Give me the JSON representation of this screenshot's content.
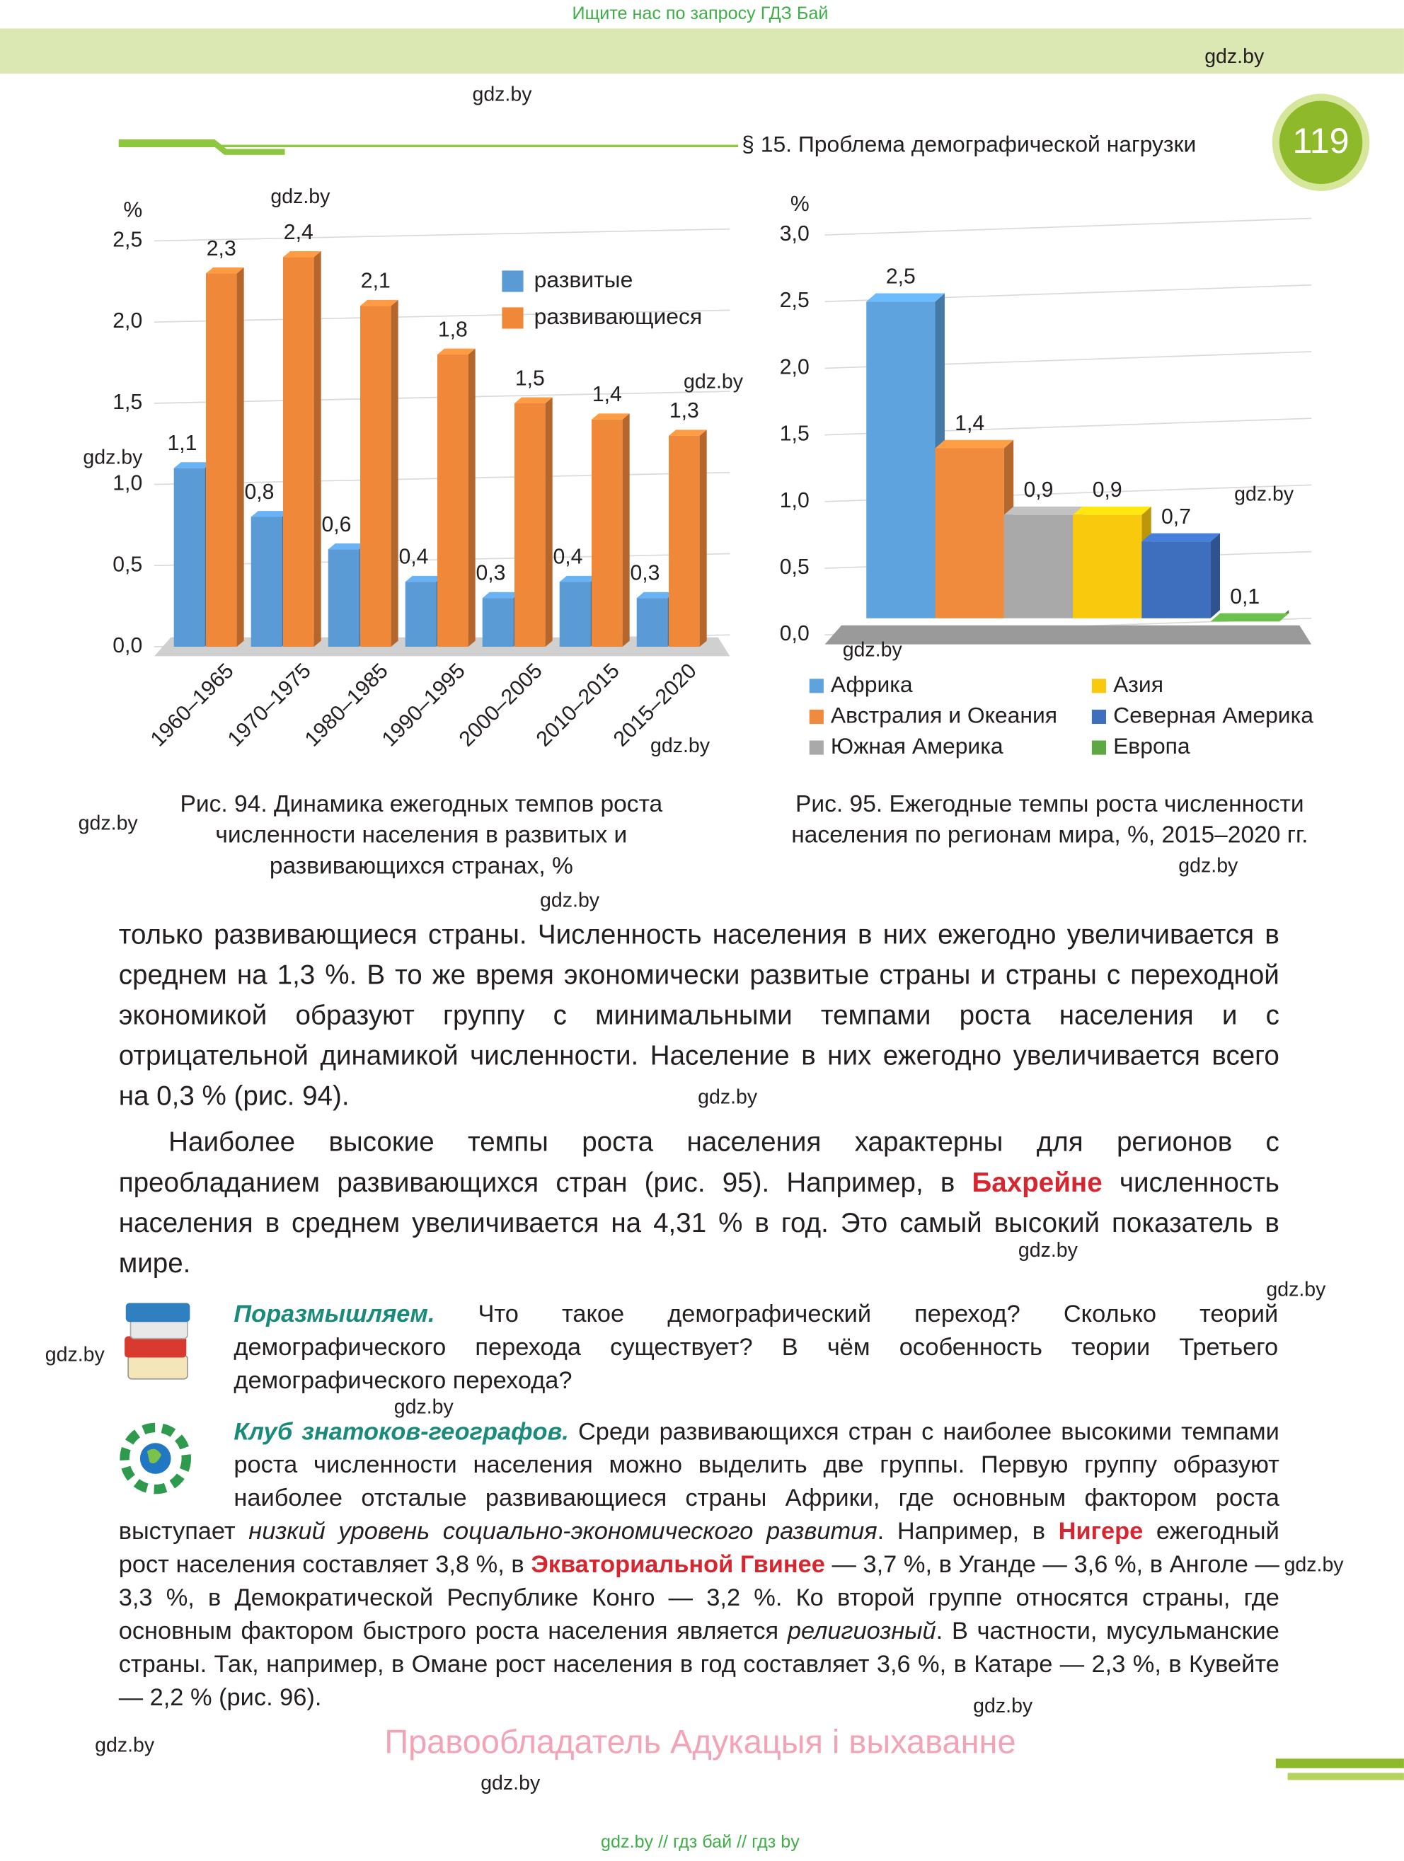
{
  "banner": "Ищите нас по запросу ГДЗ Бай",
  "header": {
    "section": "§ 15. Проблема демографической нагрузки",
    "page_number": "119"
  },
  "chart_data": [
    {
      "type": "bar",
      "caption": "Рис. 94. Динамика ежегодных темпов роста численности населения в развитых и развивающихся странах, %",
      "y_label": "%",
      "categories": [
        "1960–1965",
        "1970–1975",
        "1980–1985",
        "1990–1995",
        "2000–2005",
        "2010–2015",
        "2015–2020"
      ],
      "series": [
        {
          "name": "развитые",
          "color": "#5b9bd5",
          "values": [
            1.1,
            0.8,
            0.6,
            0.4,
            0.3,
            0.4,
            0.3
          ],
          "value_labels": [
            "1,1",
            "0,8",
            "0,6",
            "0,4",
            "0,3",
            "0,4",
            "0,3"
          ]
        },
        {
          "name": "развивающиеся",
          "color": "#f0883a",
          "values": [
            2.3,
            2.4,
            2.1,
            1.8,
            1.5,
            1.4,
            1.3
          ],
          "value_labels": [
            "2,3",
            "2,4",
            "2,1",
            "1,8",
            "1,5",
            "1,4",
            "1,3"
          ]
        }
      ],
      "ylim": [
        0,
        2.5
      ],
      "yticks": [
        {
          "value": 0,
          "label": "0,0"
        },
        {
          "value": 0.5,
          "label": "0,5"
        },
        {
          "value": 1,
          "label": "1,0"
        },
        {
          "value": 1.5,
          "label": "1,5"
        },
        {
          "value": 2,
          "label": "2,0"
        },
        {
          "value": 2.5,
          "label": "2,5"
        }
      ],
      "grid": true,
      "legend": "upper right"
    },
    {
      "type": "bar",
      "caption": "Рис. 95. Ежегодные темпы роста численности населения по регионам мира, %, 2015–2020 гг.",
      "y_label": "%",
      "categories": [
        "Африка",
        "Австралия и Океания",
        "Южная Америка",
        "Азия",
        "Северная Америка",
        "Европа"
      ],
      "values": [
        2.5,
        1.4,
        0.9,
        0.9,
        0.7,
        0.1
      ],
      "value_labels": [
        "2,5",
        "1,4",
        "0,9",
        "0,9",
        "0,7",
        "0,1"
      ],
      "colors": [
        "#5ea3dd",
        "#f08a3c",
        "#a9a9a9",
        "#f9c90e",
        "#3e6fbf",
        "#5ea843"
      ],
      "ylim": [
        0,
        3
      ],
      "yticks": [
        {
          "value": 0,
          "label": "0,0"
        },
        {
          "value": 0.5,
          "label": "0,5"
        },
        {
          "value": 1,
          "label": "1,0"
        },
        {
          "value": 1.5,
          "label": "1,5"
        },
        {
          "value": 2,
          "label": "2,0"
        },
        {
          "value": 2.5,
          "label": "2,5"
        },
        {
          "value": 3,
          "label": "3,0"
        }
      ],
      "grid": true,
      "legend": "bottom"
    }
  ],
  "paragraphs": [
    [
      "только развивающиеся страны. Численность населения в них ежегодно увеличивается в среднем на 1,3 %. В то же время экономически развитые страны и страны с переходной экономикой образуют группу с минимальными темпами роста населения и с отрицательной динамикой численности. Население в них ежегодно увеличивается всего на 0,3 % (рис. 94)."
    ],
    [
      "Наиболее высокие темпы роста населения характерны для регионов с преобладанием развивающихся стран (рис. 95). Например, в ",
      "Бахрейне",
      " численность населения в среднем увеличивается на 4,31 % в год. Это самый высокий показатель в мире."
    ]
  ],
  "think": [
    "Поразмышляем.",
    " Что такое демографический переход? Сколько теорий демографического перехода существует? В чём особенность теории Третьего демографического перехода?"
  ],
  "club": [
    "Клуб знатоков-географов.",
    " Среди развивающихся стран с наиболее высокими темпами роста численности населения можно выделить две группы. Первую группу образуют наиболее отсталые развивающиеся страны Африки, где основным фактором роста выступает ",
    "низкий уровень социально-экономического развития",
    ". Например, в ",
    "Нигере",
    " ежегодный рост населения составляет 3,8 %, в ",
    "Экваториальной Гвинее",
    " — 3,7 %, в Уганде — 3,6 %, в Анголе — 3,3 %, в Демократической Республике Конго — 3,2 %. Ко второй группе относятся страны, где основным фактором быстрого роста населения является ",
    "религиозный",
    ". В частности, мусульманские страны. Так, например, в Омане рост населения в год составляет 3,6 %, в Катаре — 2,3 %, в Кувейте — 2,2 % (рис. 96)."
  ],
  "copyright": "Правообладатель Адукацыя і выхаванне",
  "footer": "gdz.by // гдз бай // гдз by",
  "watermarks": [
    "gdz.by",
    "gdz.by",
    "gdz.by",
    "gdz.by",
    "gdz.by",
    "gdz.by",
    "gdz.by",
    "gdz.by",
    "gdz.by",
    "gdz.by",
    "gdz.by",
    "gdz.by",
    "gdz.by",
    "gdz.by",
    "gdz.by",
    "gdz.by",
    "gdz.by",
    "gdz.by",
    "gdz.by",
    "gdz.by"
  ]
}
